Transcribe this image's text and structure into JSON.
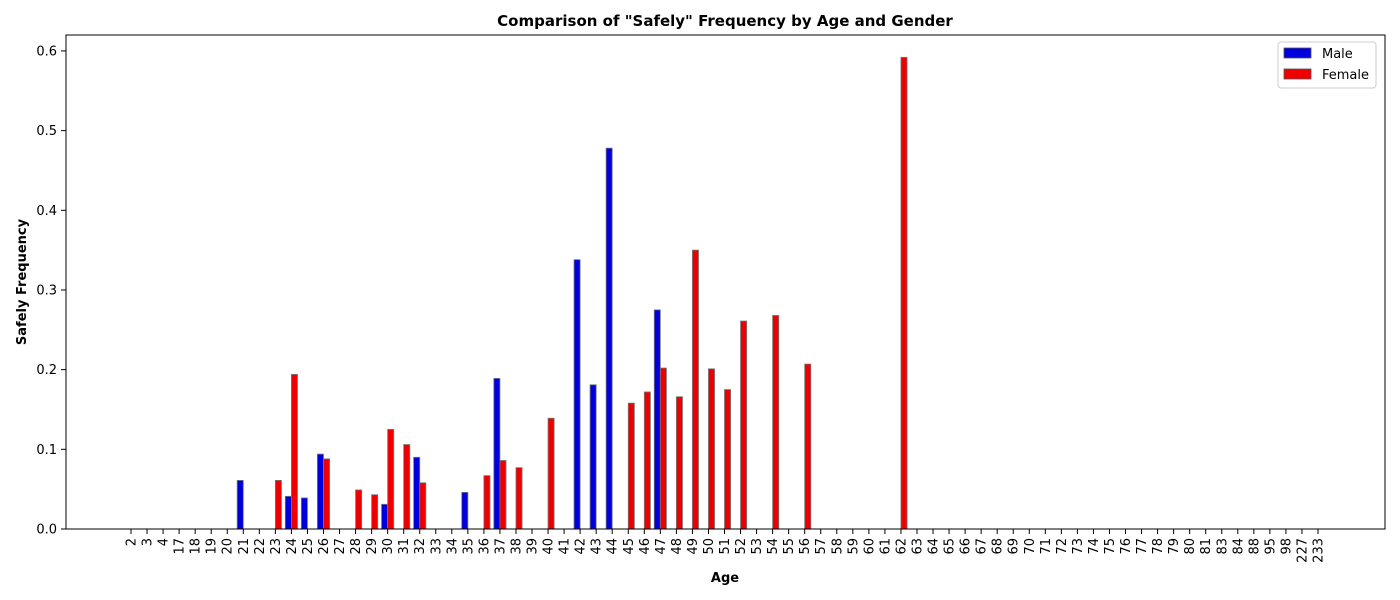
{
  "chart_data": {
    "type": "bar",
    "title": "Comparison of \"Safely\" Frequency by Age and Gender",
    "xlabel": "Age",
    "ylabel": "Safely Frequency",
    "ylim": [
      0,
      0.62
    ],
    "yticks": [
      "0.0",
      "0.1",
      "0.2",
      "0.3",
      "0.4",
      "0.5",
      "0.6"
    ],
    "grid": false,
    "legend_position": "top-right",
    "categories": [
      "2",
      "3",
      "4",
      "17",
      "18",
      "19",
      "20",
      "21",
      "22",
      "23",
      "24",
      "25",
      "26",
      "27",
      "28",
      "29",
      "30",
      "31",
      "32",
      "33",
      "34",
      "35",
      "36",
      "37",
      "38",
      "39",
      "40",
      "41",
      "42",
      "43",
      "44",
      "45",
      "46",
      "47",
      "48",
      "49",
      "50",
      "51",
      "52",
      "53",
      "54",
      "55",
      "56",
      "57",
      "58",
      "59",
      "60",
      "61",
      "62",
      "63",
      "64",
      "65",
      "66",
      "67",
      "68",
      "69",
      "70",
      "71",
      "72",
      "73",
      "74",
      "75",
      "76",
      "77",
      "78",
      "79",
      "80",
      "81",
      "83",
      "84",
      "88",
      "95",
      "98",
      "227",
      "233"
    ],
    "series": [
      {
        "name": "Male",
        "color": "#0000dd",
        "values": [
          0,
          0,
          0,
          0,
          0,
          0,
          0,
          0.061,
          0,
          0,
          0.041,
          0.039,
          0.094,
          0,
          0,
          0,
          0.031,
          0,
          0.09,
          0,
          0,
          0.046,
          0,
          0.189,
          0,
          0,
          0,
          0,
          0.338,
          0.181,
          0.478,
          0,
          0,
          0.275,
          0,
          0,
          0,
          0,
          0,
          0,
          0,
          0,
          0,
          0,
          0,
          0,
          0,
          0,
          0,
          0,
          0,
          0,
          0,
          0,
          0,
          0,
          0,
          0,
          0,
          0,
          0,
          0,
          0,
          0,
          0,
          0,
          0,
          0,
          0,
          0,
          0,
          0,
          0,
          0,
          0
        ]
      },
      {
        "name": "Female",
        "color": "#ee0000",
        "values": [
          0,
          0,
          0,
          0,
          0,
          0,
          0,
          0,
          0,
          0.061,
          0.194,
          0,
          0.088,
          0,
          0.049,
          0.043,
          0.125,
          0.106,
          0.058,
          0,
          0,
          0,
          0.067,
          0.086,
          0.077,
          0,
          0.139,
          0,
          0,
          0,
          0,
          0.158,
          0.172,
          0.202,
          0.166,
          0.35,
          0.201,
          0.175,
          0.261,
          0,
          0.268,
          0,
          0.207,
          0,
          0,
          0,
          0,
          0,
          0.592,
          0,
          0,
          0,
          0,
          0,
          0,
          0,
          0,
          0,
          0,
          0,
          0,
          0,
          0,
          0,
          0,
          0,
          0,
          0,
          0,
          0,
          0,
          0,
          0,
          0,
          0
        ]
      }
    ]
  }
}
